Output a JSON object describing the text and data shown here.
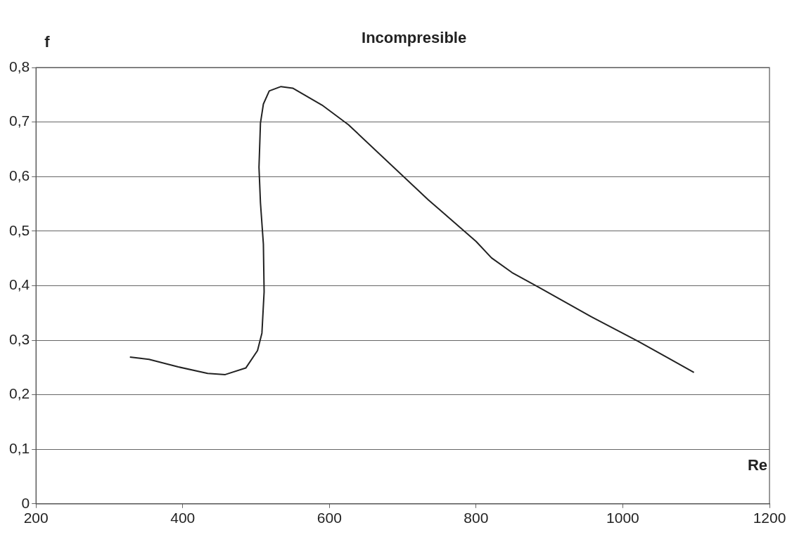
{
  "chart_data": {
    "type": "line",
    "title": "Incompresible",
    "xlabel": "Re",
    "ylabel": "f",
    "series": [
      {
        "color": "#222222",
        "x": [
          328,
          354,
          394,
          434,
          458,
          486,
          502,
          508,
          511,
          510,
          506,
          504,
          506,
          510,
          518,
          534,
          550,
          590,
          626,
          735,
          753,
          800,
          821,
          849,
          884,
          957,
          1021,
          1097
        ],
        "values": [
          0.269,
          0.265,
          0.251,
          0.239,
          0.237,
          0.249,
          0.281,
          0.313,
          0.389,
          0.476,
          0.552,
          0.617,
          0.698,
          0.733,
          0.757,
          0.765,
          0.762,
          0.731,
          0.695,
          0.557,
          0.536,
          0.481,
          0.451,
          0.424,
          0.398,
          0.343,
          0.298,
          0.241
        ]
      }
    ],
    "xlim": [
      200,
      1200
    ],
    "xticks": [
      200,
      400,
      600,
      800,
      1000,
      1200
    ],
    "ylim": [
      0,
      0.8
    ],
    "yticks": [
      0,
      {
        "value": 0.1,
        "label": "0,1"
      },
      {
        "value": 0.2,
        "label": "0,2"
      },
      {
        "value": 0.3,
        "label": "0,3"
      },
      {
        "value": 0.4,
        "label": "0,4"
      },
      {
        "value": 0.5,
        "label": "0,5"
      },
      {
        "value": 0.6,
        "label": "0,6"
      },
      {
        "value": 0.7,
        "label": "0,7"
      },
      {
        "value": 0.8,
        "label": "0,8"
      }
    ],
    "grid": "y",
    "legend": false,
    "marker": "none",
    "line_style": "solid"
  }
}
